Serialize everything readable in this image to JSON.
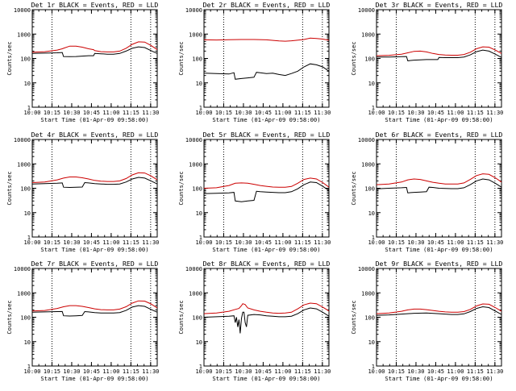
{
  "chart_data": [
    {
      "type": "line",
      "title": "Det 1r BLACK = Events, RED = LLD",
      "xlabel": "Start Time (01-Apr-09 09:58:00)",
      "ylabel": "Counts/sec",
      "ylog": true,
      "ylim": [
        1,
        10000
      ],
      "yticks": [
        "1",
        "10",
        "100",
        "1000",
        "10000"
      ],
      "xlim": [
        0,
        100
      ],
      "xticks": [
        "10:00",
        "10:15",
        "10:30",
        "10:45",
        "11:00",
        "11:15",
        "11:30"
      ],
      "vlines": [
        "10:15",
        "11:15",
        "11:30"
      ],
      "series": [
        {
          "color": "#000000",
          "x": [
            0,
            10,
            20,
            24,
            25,
            30,
            35,
            40,
            45,
            49,
            50,
            55,
            60,
            65,
            70,
            75,
            80,
            85,
            90,
            95,
            100
          ],
          "values": [
            160,
            165,
            170,
            175,
            120,
            118,
            120,
            125,
            130,
            130,
            160,
            155,
            150,
            150,
            160,
            200,
            260,
            300,
            280,
            210,
            160
          ]
        },
        {
          "color": "#cc0000",
          "x": [
            0,
            10,
            20,
            24,
            25,
            30,
            35,
            40,
            45,
            49,
            50,
            55,
            60,
            65,
            70,
            75,
            80,
            85,
            90,
            95,
            100
          ],
          "values": [
            180,
            190,
            220,
            250,
            260,
            320,
            320,
            290,
            250,
            230,
            210,
            190,
            185,
            185,
            200,
            260,
            380,
            480,
            470,
            340,
            230
          ]
        }
      ]
    },
    {
      "type": "line",
      "title": "Det 2r BLACK = Events, RED = LLD",
      "xlabel": "Start Time (01-Apr-09 09:58:00)",
      "ylabel": "Counts/sec",
      "ylog": true,
      "ylim": [
        1,
        10000
      ],
      "yticks": [
        "1",
        "10",
        "100",
        "1000",
        "10000"
      ],
      "xlim": [
        0,
        100
      ],
      "xticks": [
        "10:00",
        "10:15",
        "10:30",
        "10:45",
        "11:00",
        "11:15",
        "11:30"
      ],
      "vlines": [
        "10:15",
        "11:15",
        "11:30"
      ],
      "series": [
        {
          "color": "#000000",
          "x": [
            0,
            10,
            20,
            24,
            25,
            30,
            35,
            40,
            42,
            45,
            50,
            55,
            60,
            65,
            70,
            75,
            80,
            85,
            90,
            95,
            100
          ],
          "values": [
            25,
            24,
            23,
            26,
            14,
            15,
            16,
            17,
            27,
            26,
            24,
            25,
            22,
            20,
            24,
            30,
            45,
            60,
            55,
            45,
            30
          ]
        },
        {
          "color": "#cc0000",
          "x": [
            0,
            10,
            20,
            30,
            40,
            50,
            60,
            65,
            70,
            80,
            85,
            90,
            95,
            100
          ],
          "values": [
            580,
            570,
            590,
            600,
            600,
            580,
            520,
            510,
            530,
            600,
            680,
            660,
            620,
            560
          ]
        }
      ]
    },
    {
      "type": "line",
      "title": "Det 3r BLACK = Events, RED = LLD",
      "xlabel": "Start Time (01-Apr-09 09:58:00)",
      "ylabel": "Counts/sec",
      "ylog": true,
      "ylim": [
        1,
        10000
      ],
      "yticks": [
        "1",
        "10",
        "100",
        "1000",
        "10000"
      ],
      "xlim": [
        0,
        100
      ],
      "xticks": [
        "10:00",
        "10:15",
        "10:30",
        "10:45",
        "11:00",
        "11:15",
        "11:30"
      ],
      "vlines": [
        "10:15",
        "11:15",
        "11:30"
      ],
      "series": [
        {
          "color": "#000000",
          "x": [
            0,
            10,
            20,
            24,
            25,
            30,
            35,
            40,
            45,
            49,
            50,
            55,
            60,
            65,
            70,
            75,
            80,
            85,
            90,
            95,
            100
          ],
          "values": [
            115,
            115,
            118,
            120,
            80,
            85,
            88,
            90,
            90,
            90,
            110,
            108,
            108,
            108,
            115,
            140,
            190,
            220,
            200,
            150,
            110
          ]
        },
        {
          "color": "#cc0000",
          "x": [
            0,
            10,
            20,
            25,
            30,
            35,
            40,
            45,
            50,
            55,
            60,
            65,
            70,
            75,
            80,
            85,
            90,
            95,
            100
          ],
          "values": [
            130,
            135,
            150,
            170,
            195,
            200,
            185,
            160,
            145,
            138,
            136,
            136,
            145,
            180,
            250,
            300,
            290,
            220,
            160
          ]
        }
      ]
    },
    {
      "type": "line",
      "title": "Det 4r BLACK = Events, RED = LLD",
      "xlabel": "Start Time (01-Apr-09 09:58:00)",
      "ylabel": "Counts/sec",
      "ylog": true,
      "ylim": [
        1,
        10000
      ],
      "yticks": [
        "1",
        "10",
        "100",
        "1000",
        "10000"
      ],
      "xlim": [
        0,
        100
      ],
      "xticks": [
        "10:00",
        "10:15",
        "10:30",
        "10:45",
        "11:00",
        "11:15",
        "11:30"
      ],
      "vlines": [
        "10:15",
        "11:15",
        "11:30"
      ],
      "series": [
        {
          "color": "#000000",
          "x": [
            0,
            10,
            20,
            24,
            25,
            30,
            35,
            40,
            42,
            45,
            50,
            55,
            60,
            65,
            70,
            75,
            80,
            85,
            90,
            95,
            100
          ],
          "values": [
            150,
            155,
            160,
            165,
            110,
            108,
            110,
            112,
            170,
            165,
            155,
            150,
            145,
            145,
            150,
            180,
            240,
            280,
            260,
            200,
            150
          ]
        },
        {
          "color": "#cc0000",
          "x": [
            0,
            10,
            20,
            25,
            30,
            35,
            40,
            45,
            50,
            55,
            60,
            65,
            70,
            75,
            80,
            85,
            90,
            95,
            100
          ],
          "values": [
            170,
            180,
            220,
            260,
            290,
            290,
            270,
            240,
            210,
            195,
            190,
            190,
            200,
            250,
            350,
            430,
            420,
            320,
            220
          ]
        }
      ]
    },
    {
      "type": "line",
      "title": "Det 5r BLACK = Events, RED = LLD",
      "xlabel": "Start Time (01-Apr-09 09:58:00)",
      "ylabel": "Counts/sec",
      "ylog": true,
      "ylim": [
        1,
        10000
      ],
      "yticks": [
        "1",
        "10",
        "100",
        "1000",
        "10000"
      ],
      "xlim": [
        0,
        100
      ],
      "xticks": [
        "10:00",
        "10:15",
        "10:30",
        "10:45",
        "11:00",
        "11:15",
        "11:30"
      ],
      "vlines": [
        "10:15",
        "11:15",
        "11:30"
      ],
      "series": [
        {
          "color": "#000000",
          "x": [
            0,
            10,
            20,
            24,
            25,
            30,
            35,
            40,
            42,
            45,
            50,
            55,
            60,
            65,
            70,
            75,
            80,
            85,
            90,
            95,
            100
          ],
          "values": [
            60,
            62,
            65,
            68,
            30,
            28,
            30,
            32,
            75,
            72,
            70,
            68,
            66,
            66,
            72,
            95,
            140,
            180,
            170,
            120,
            80
          ]
        },
        {
          "color": "#cc0000",
          "x": [
            0,
            10,
            20,
            25,
            30,
            35,
            40,
            45,
            50,
            55,
            60,
            65,
            70,
            75,
            80,
            85,
            90,
            95,
            100
          ],
          "values": [
            100,
            105,
            130,
            160,
            165,
            160,
            145,
            130,
            120,
            112,
            110,
            110,
            118,
            160,
            230,
            260,
            240,
            170,
            110
          ]
        }
      ]
    },
    {
      "type": "line",
      "title": "Det 6r BLACK = Events, RED = LLD",
      "xlabel": "Start Time (01-Apr-09 09:58:00)",
      "ylabel": "Counts/sec",
      "ylog": true,
      "ylim": [
        1,
        10000
      ],
      "yticks": [
        "1",
        "10",
        "100",
        "1000",
        "10000"
      ],
      "xlim": [
        0,
        100
      ],
      "xticks": [
        "10:00",
        "10:15",
        "10:30",
        "10:45",
        "11:00",
        "11:15",
        "11:30"
      ],
      "vlines": [
        "10:15",
        "11:15",
        "11:30"
      ],
      "series": [
        {
          "color": "#000000",
          "x": [
            0,
            10,
            20,
            24,
            25,
            30,
            35,
            40,
            42,
            45,
            50,
            55,
            60,
            65,
            70,
            75,
            80,
            85,
            90,
            95,
            100
          ],
          "values": [
            95,
            100,
            105,
            108,
            65,
            68,
            70,
            72,
            110,
            108,
            100,
            98,
            96,
            96,
            105,
            140,
            200,
            240,
            220,
            160,
            110
          ]
        },
        {
          "color": "#cc0000",
          "x": [
            0,
            10,
            20,
            25,
            30,
            35,
            40,
            45,
            50,
            55,
            60,
            65,
            70,
            75,
            80,
            85,
            90,
            95,
            100
          ],
          "values": [
            140,
            150,
            180,
            220,
            240,
            230,
            200,
            175,
            160,
            150,
            148,
            150,
            165,
            230,
            330,
            390,
            370,
            270,
            180
          ]
        }
      ]
    },
    {
      "type": "line",
      "title": "Det 7r BLACK = Events, RED = LLD",
      "xlabel": "Start Time (01-Apr-09 09:58:00)",
      "ylabel": "Counts/sec",
      "ylog": true,
      "ylim": [
        1,
        10000
      ],
      "yticks": [
        "1",
        "10",
        "100",
        "1000",
        "10000"
      ],
      "xlim": [
        0,
        100
      ],
      "xticks": [
        "10:00",
        "10:15",
        "10:30",
        "10:45",
        "11:00",
        "11:15",
        "11:30"
      ],
      "vlines": [
        "10:15",
        "11:15",
        "11:30"
      ],
      "series": [
        {
          "color": "#000000",
          "x": [
            0,
            10,
            20,
            24,
            25,
            30,
            35,
            40,
            42,
            45,
            50,
            55,
            60,
            65,
            70,
            75,
            80,
            85,
            90,
            95,
            100
          ],
          "values": [
            160,
            165,
            170,
            172,
            115,
            112,
            115,
            118,
            170,
            165,
            155,
            150,
            148,
            148,
            155,
            190,
            260,
            300,
            280,
            210,
            160
          ]
        },
        {
          "color": "#cc0000",
          "x": [
            0,
            10,
            20,
            25,
            30,
            35,
            40,
            45,
            50,
            55,
            60,
            65,
            70,
            75,
            80,
            85,
            90,
            95,
            100
          ],
          "values": [
            180,
            190,
            230,
            270,
            300,
            300,
            280,
            250,
            220,
            205,
            200,
            200,
            215,
            270,
            380,
            470,
            460,
            350,
            240
          ]
        }
      ]
    },
    {
      "type": "line",
      "title": "Det 8r BLACK = Events, RED = LLD",
      "xlabel": "Start Time (01-Apr-09 09:58:00)",
      "ylabel": "Counts/sec",
      "ylog": true,
      "ylim": [
        1,
        10000
      ],
      "yticks": [
        "1",
        "10",
        "100",
        "1000",
        "10000"
      ],
      "xlim": [
        0,
        100
      ],
      "xticks": [
        "10:00",
        "10:15",
        "10:30",
        "10:45",
        "11:00",
        "11:15",
        "11:30"
      ],
      "vlines": [
        "10:15",
        "11:15",
        "11:30"
      ],
      "series": [
        {
          "color": "#000000",
          "x": [
            0,
            10,
            20,
            24,
            25,
            26,
            27,
            28,
            29,
            30,
            31,
            32,
            33,
            34,
            35,
            40,
            45,
            50,
            55,
            60,
            65,
            70,
            75,
            80,
            85,
            90,
            95,
            100
          ],
          "values": [
            100,
            105,
            110,
            115,
            60,
            100,
            40,
            80,
            22,
            90,
            160,
            160,
            60,
            40,
            120,
            130,
            125,
            115,
            110,
            105,
            105,
            110,
            140,
            200,
            240,
            220,
            160,
            110
          ]
        },
        {
          "color": "#cc0000",
          "x": [
            0,
            10,
            20,
            25,
            28,
            30,
            31,
            33,
            35,
            40,
            45,
            50,
            55,
            60,
            65,
            70,
            75,
            80,
            85,
            90,
            95,
            100
          ],
          "values": [
            140,
            150,
            175,
            210,
            230,
            300,
            360,
            330,
            240,
            200,
            175,
            160,
            150,
            145,
            148,
            160,
            220,
            320,
            380,
            360,
            260,
            180
          ]
        }
      ]
    },
    {
      "type": "line",
      "title": "Det 9r BLACK = Events, RED = LLD",
      "xlabel": "Start Time (01-Apr-09 09:58:00)",
      "ylabel": "Counts/sec",
      "ylog": true,
      "ylim": [
        1,
        10000
      ],
      "yticks": [
        "1",
        "10",
        "100",
        "1000",
        "10000"
      ],
      "xlim": [
        0,
        100
      ],
      "xticks": [
        "10:00",
        "10:15",
        "10:30",
        "10:45",
        "11:00",
        "11:15",
        "11:30"
      ],
      "vlines": [
        "10:15",
        "11:15",
        "11:30"
      ],
      "series": [
        {
          "color": "#000000",
          "x": [
            0,
            10,
            20,
            30,
            40,
            50,
            60,
            65,
            70,
            75,
            80,
            85,
            90,
            95,
            100
          ],
          "values": [
            120,
            125,
            135,
            145,
            150,
            140,
            130,
            130,
            138,
            170,
            230,
            270,
            250,
            180,
            130
          ]
        },
        {
          "color": "#cc0000",
          "x": [
            0,
            10,
            20,
            25,
            30,
            35,
            40,
            45,
            50,
            55,
            60,
            65,
            70,
            75,
            80,
            85,
            90,
            95,
            100
          ],
          "values": [
            140,
            150,
            175,
            200,
            215,
            215,
            205,
            190,
            175,
            165,
            160,
            160,
            170,
            210,
            290,
            350,
            340,
            250,
            175
          ]
        }
      ]
    }
  ]
}
